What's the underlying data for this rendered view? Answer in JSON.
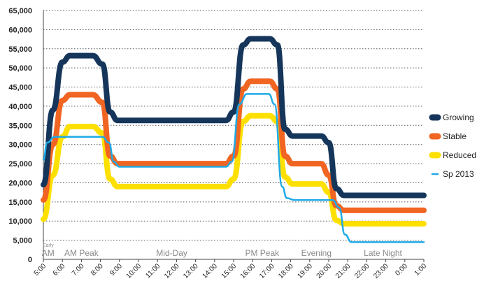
{
  "chart_data": {
    "type": "line",
    "x": [
      "5:00",
      "6:00",
      "7:00",
      "8:00",
      "9:00",
      "10:00",
      "11:00",
      "12:00",
      "13:00",
      "14:00",
      "15:00",
      "16:00",
      "17:00",
      "18:00",
      "19:00",
      "20:00",
      "21:00",
      "22:00",
      "23:00",
      "0:00",
      "1:00"
    ],
    "ylim": [
      0,
      65000
    ],
    "yticks": [
      0,
      5000,
      10000,
      15000,
      20000,
      25000,
      30000,
      35000,
      40000,
      45000,
      50000,
      55000,
      60000,
      65000
    ],
    "ytick_labels": [
      "0",
      "5,000",
      "10,000",
      "15,000",
      "20,000",
      "25,000",
      "30,000",
      "35,000",
      "40,000",
      "45,000",
      "50,000",
      "55,000",
      "60,000",
      "65,000"
    ],
    "grid": true,
    "legend_position": "right",
    "periods": [
      {
        "label": "AM",
        "sublabel": "Early",
        "x_start": 0,
        "x_end": 0.5
      },
      {
        "label": "AM Peak",
        "x_start": 0.5,
        "x_end": 3.5
      },
      {
        "label": "Mid-Day",
        "x_start": 3.5,
        "x_end": 10
      },
      {
        "label": "PM Peak",
        "x_start": 10,
        "x_end": 13
      },
      {
        "label": "Evening",
        "x_start": 13,
        "x_end": 15.7
      },
      {
        "label": "Late Night",
        "x_start": 15.7,
        "x_end": 20
      }
    ],
    "series": [
      {
        "name": "Reduced",
        "color": "#fde000",
        "points": [
          [
            0,
            10500
          ],
          [
            0.5,
            22000
          ],
          [
            1,
            32000
          ],
          [
            1.4,
            34700
          ],
          [
            2.6,
            34700
          ],
          [
            3.1,
            33000
          ],
          [
            3.5,
            21000
          ],
          [
            3.9,
            19000
          ],
          [
            9.6,
            19000
          ],
          [
            10.0,
            21000
          ],
          [
            10.5,
            36000
          ],
          [
            10.9,
            37500
          ],
          [
            11.9,
            37500
          ],
          [
            12.3,
            36000
          ],
          [
            12.7,
            21500
          ],
          [
            13.1,
            19700
          ],
          [
            14.6,
            19700
          ],
          [
            15.0,
            17500
          ],
          [
            15.4,
            10200
          ],
          [
            15.8,
            9300
          ],
          [
            20,
            9300
          ]
        ]
      },
      {
        "name": "Stable",
        "color": "#f16522",
        "points": [
          [
            0,
            15500
          ],
          [
            0.5,
            30000
          ],
          [
            1,
            41500
          ],
          [
            1.4,
            43000
          ],
          [
            2.6,
            43000
          ],
          [
            3.1,
            41000
          ],
          [
            3.5,
            27000
          ],
          [
            3.9,
            25000
          ],
          [
            9.6,
            25000
          ],
          [
            10.0,
            27000
          ],
          [
            10.5,
            44500
          ],
          [
            10.9,
            46500
          ],
          [
            11.9,
            46500
          ],
          [
            12.3,
            44500
          ],
          [
            12.7,
            27000
          ],
          [
            13.1,
            25000
          ],
          [
            14.6,
            25000
          ],
          [
            15.0,
            22000
          ],
          [
            15.4,
            14000
          ],
          [
            15.8,
            12800
          ],
          [
            20,
            12800
          ]
        ]
      },
      {
        "name": "Growing",
        "color": "#15365a",
        "points": [
          [
            0,
            19500
          ],
          [
            0.5,
            39000
          ],
          [
            1,
            51500
          ],
          [
            1.4,
            53200
          ],
          [
            2.6,
            53200
          ],
          [
            3.1,
            51000
          ],
          [
            3.5,
            38500
          ],
          [
            3.9,
            36300
          ],
          [
            9.6,
            36300
          ],
          [
            10.0,
            38500
          ],
          [
            10.5,
            56000
          ],
          [
            10.9,
            57600
          ],
          [
            11.9,
            57600
          ],
          [
            12.3,
            56000
          ],
          [
            12.7,
            34000
          ],
          [
            13.1,
            32200
          ],
          [
            14.6,
            32200
          ],
          [
            15.0,
            30500
          ],
          [
            15.4,
            18500
          ],
          [
            15.8,
            16700
          ],
          [
            20,
            16700
          ]
        ]
      },
      {
        "name": "Sp 2013",
        "color": "#1eaae7",
        "points": [
          [
            0,
            26000
          ],
          [
            0.2,
            30500
          ],
          [
            0.6,
            32000
          ],
          [
            3.1,
            32000
          ],
          [
            3.45,
            30500
          ],
          [
            3.7,
            25500
          ],
          [
            4.0,
            24200
          ],
          [
            9.6,
            24200
          ],
          [
            9.9,
            25500
          ],
          [
            10.3,
            40500
          ],
          [
            10.7,
            43200
          ],
          [
            11.85,
            43200
          ],
          [
            12.15,
            40500
          ],
          [
            12.55,
            19000
          ],
          [
            12.8,
            16000
          ],
          [
            13.2,
            15500
          ],
          [
            15.2,
            15500
          ],
          [
            15.55,
            13500
          ],
          [
            15.85,
            6500
          ],
          [
            16.2,
            4500
          ],
          [
            20,
            4500
          ]
        ]
      }
    ]
  },
  "legend": [
    {
      "label": "Growing",
      "color": "#15365a"
    },
    {
      "label": "Stable",
      "color": "#f16522"
    },
    {
      "label": "Reduced",
      "color": "#fde000"
    },
    {
      "label": "Sp 2013",
      "color": "#1eaae7"
    }
  ]
}
